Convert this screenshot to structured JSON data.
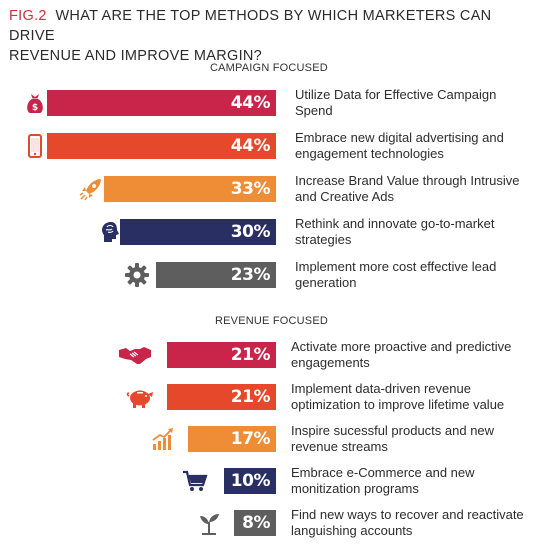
{
  "title": {
    "fig": "FIG.2",
    "text_line1": "WHAT ARE THE TOP METHODS BY WHICH MARKETERS CAN DRIVE",
    "text_line2": "REVENUE AND IMPROVE MARGIN?"
  },
  "colors": {
    "crimson": "#c9254a",
    "orange_red": "#e5482b",
    "orange": "#ef8d36",
    "navy": "#2a2f63",
    "gray": "#5e5e5e"
  },
  "chart_data": [
    {
      "type": "bar",
      "title": "CAMPAIGN FOCUSED",
      "categories": [
        "Utilize Data for Effective Campaign Spend",
        "Embrace new digital advertising and engagement technologies",
        "Increase Brand Value through Intrusive and Creative Ads",
        "Rethink and innovate go-to-market strategies",
        "Implement more cost effective lead generation"
      ],
      "values": [
        44,
        44,
        33,
        30,
        23
      ],
      "value_labels": [
        "44%",
        "44%",
        "33%",
        "30%",
        "23%"
      ],
      "icons": [
        "money-bag-icon",
        "mobile-phone-icon",
        "rocket-icon",
        "brain-head-icon",
        "gear-icon"
      ],
      "bar_colors": [
        "#c9254a",
        "#e5482b",
        "#ef8d36",
        "#2a2f63",
        "#5e5e5e"
      ],
      "orientation": "horizontal",
      "grid": false
    },
    {
      "type": "bar",
      "title": "REVENUE FOCUSED",
      "categories": [
        "Activate more proactive and predictive engagements",
        "Implement data-driven revenue optimization to improve lifetime value",
        "Inspire sucessful products and new revenue streams",
        "Embrace e-Commerce and new monitization programs",
        "Find new ways to recover and reactivate languishing accounts"
      ],
      "values": [
        21,
        21,
        17,
        10,
        8
      ],
      "value_labels": [
        "21%",
        "21%",
        "17%",
        "10%",
        "8%"
      ],
      "icons": [
        "handshake-icon",
        "piggy-bank-icon",
        "growth-chart-icon",
        "shopping-cart-icon",
        "seedling-icon"
      ],
      "bar_colors": [
        "#c9254a",
        "#e5482b",
        "#ef8d36",
        "#2a2f63",
        "#5e5e5e"
      ],
      "orientation": "horizontal",
      "grid": false
    }
  ],
  "rows_text": {
    "c0": [
      "Utilize Data for Effective Campaign",
      "Spend"
    ],
    "c1": [
      "Embrace new digital advertising and",
      "engagement technologies"
    ],
    "c2": [
      "Increase Brand Value through Intrusive",
      "and Creative Ads"
    ],
    "c3": [
      "Rethink and innovate go-to-market",
      "strategies"
    ],
    "c4": [
      "Implement more cost effective lead",
      "generation"
    ],
    "r0": [
      "Activate more proactive and predictive",
      "engagements"
    ],
    "r1": [
      "Implement data-driven revenue",
      "optimization to improve lifetime value"
    ],
    "r2": [
      "Inspire sucessful products and new",
      "revenue streams"
    ],
    "r3": [
      "Embrace e-Commerce and new",
      "monitization programs"
    ],
    "r4": [
      "Find new ways to recover and reactivate",
      "languishing accounts"
    ]
  }
}
